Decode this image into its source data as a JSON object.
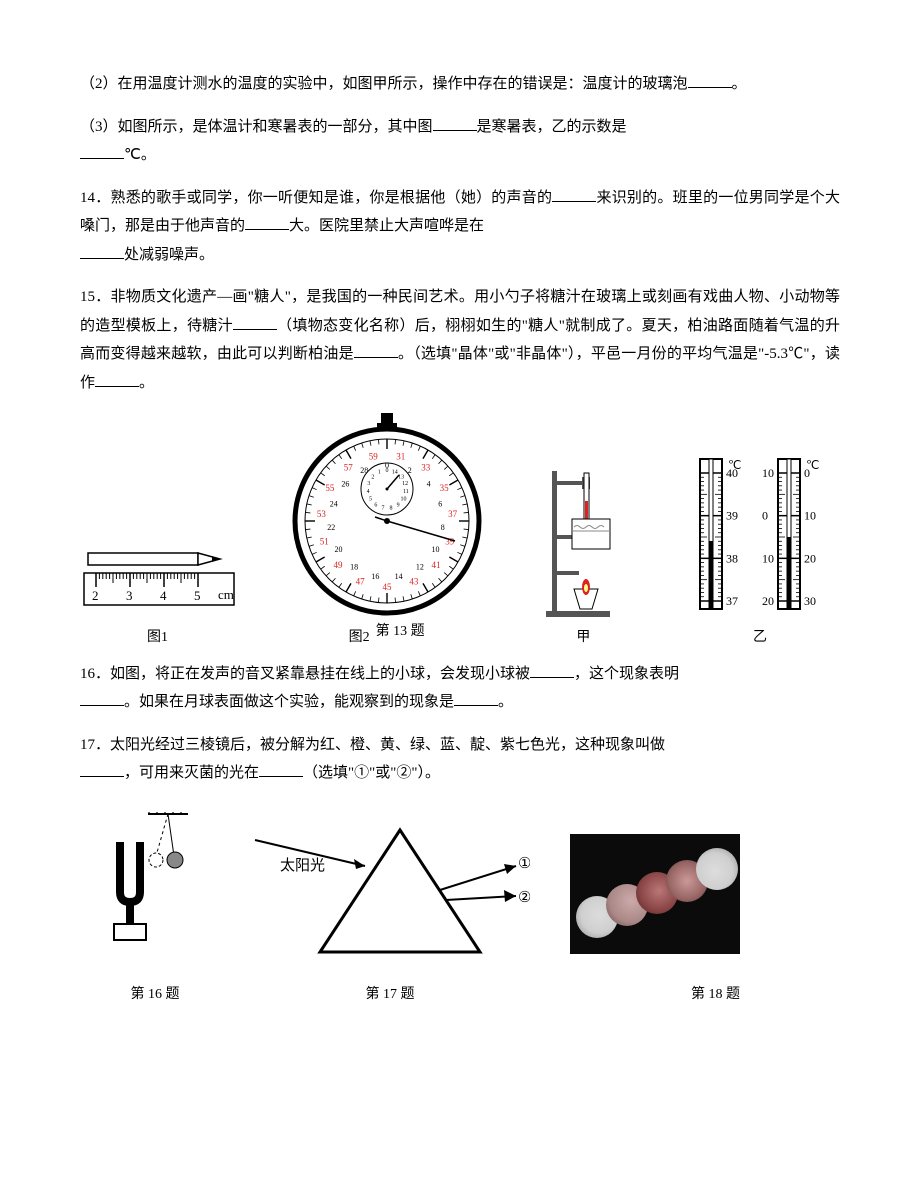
{
  "q13_2": {
    "prefix": "（2）在用温度计测水的温度的实验中，如图甲所示，操作中存在的错误是：温度计的玻璃泡",
    "suffix": "。"
  },
  "q13_3": {
    "t1": "（3）如图所示，是体温计和寒暑表的一部分，其中图",
    "t2": "是寒暑表，乙的示数是",
    "t3": "℃。"
  },
  "q14": {
    "num": "14．",
    "t1": "熟悉的歌手或同学，你一听便知是谁，你是根据他（她）的声音的",
    "t2": "来识别的。班里的一位男同学是个大嗓门，那是由于他声音的",
    "t3": "大。医院里禁止大声喧哗是在",
    "t4": "处减弱噪声。"
  },
  "q15": {
    "num": "15．",
    "t1": "非物质文化遗产—画\"糖人\"，是我国的一种民间艺术。用小勺子将糖汁在玻璃上或刻画有戏曲人物、小动物等的造型模板上，待糖汁",
    "t2": "（填物态变化名称）后，栩栩如生的\"糖人\"就制成了。夏天，柏油路面随着气温的升高而变得越来越软，由此可以判断柏油是",
    "t3": "。（选填\"晶体\"或\"非晶体\"），平邑一月份的平均气温是\"-5.3℃\"，读作",
    "t4": "。"
  },
  "fig13": {
    "ruler_label": "图1",
    "ruler_ticks": [
      "2",
      "3",
      "4",
      "5"
    ],
    "ruler_unit": "cm",
    "watch_label": "图2",
    "watch_midcaption": "第 13 题",
    "watch_outer": [
      "31",
      "33",
      "35",
      "37",
      "39",
      "41",
      "43",
      "45",
      "47",
      "49",
      "51",
      "53",
      "55",
      "57",
      "59"
    ],
    "watch_outer2": [
      "0",
      "2",
      "4",
      "6",
      "8",
      "10",
      "12",
      "14",
      "16",
      "18",
      "20",
      "22",
      "24",
      "26",
      "28"
    ],
    "watch_inner": [
      "0",
      "14",
      "13",
      "12",
      "11",
      "10",
      "9",
      "8",
      "7",
      "6",
      "5",
      "4",
      "3",
      "2",
      "1"
    ],
    "jia_label": "甲",
    "yi_label": "乙",
    "therm_left": {
      "unit": "℃",
      "ticks": [
        "40",
        "39",
        "38",
        "37"
      ],
      "fill_top": 0.55
    },
    "therm_right": {
      "unit": "℃",
      "ticks": [
        "10",
        "0",
        "10",
        "20"
      ],
      "ticksR": [
        "0",
        "10",
        "20",
        "30"
      ],
      "fill_top": 0.52
    }
  },
  "q16": {
    "num": "16．",
    "t1": "如图，将正在发声的音叉紧靠悬挂在线上的小球，会发现小球被",
    "t2": "，这个现象表明",
    "t3": "。如果在月球表面做这个实验，能观察到的现象是",
    "t4": "。"
  },
  "q17": {
    "num": "17．",
    "t1": "太阳光经过三棱镜后，被分解为红、橙、黄、绿、蓝、靛、紫七色光，这种现象叫做",
    "t2": "，可用来灭菌的光在",
    "t3": "（选填\"①\"或\"②\"）。"
  },
  "fig_bottom": {
    "fork_caption": "第 16 题",
    "prism_light_label": "太阳光",
    "prism_out1": "①",
    "prism_out2": "②",
    "prism_caption": "第 17 题",
    "moon_caption": "第 18 题"
  },
  "colors": {
    "stroke": "#000000",
    "red": "#d22",
    "fill_dark": "#000000",
    "gray": "#888",
    "moon_gray": "#bfbfbf"
  }
}
